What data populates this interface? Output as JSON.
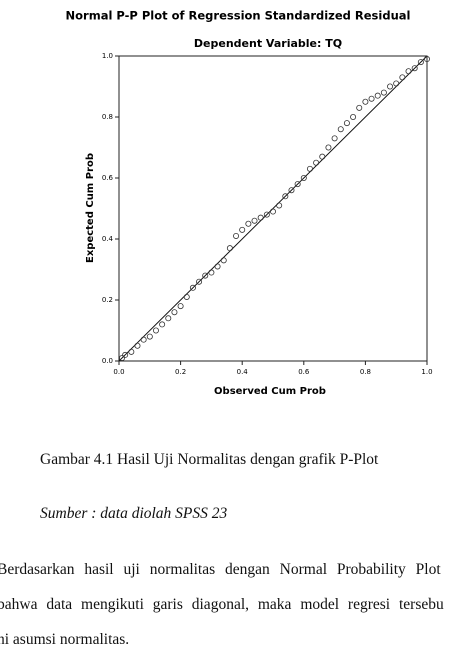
{
  "chart_data": {
    "type": "scatter",
    "title": "Normal P-P Plot of Regression Standardized Residual",
    "subtitle": "Dependent Variable: TQ",
    "x_label": "Observed Cum Prob",
    "y_label": "Expected Cum Prob",
    "xlim": [
      0,
      1
    ],
    "ylim": [
      0,
      1
    ],
    "xticks": [
      {
        "value": 0,
        "label": "0.0"
      },
      {
        "value": 0.2,
        "label": "0.2"
      },
      {
        "value": 0.4,
        "label": "0.4"
      },
      {
        "value": 0.6,
        "label": "0.6"
      },
      {
        "value": 0.8,
        "label": "0.8"
      },
      {
        "value": 1,
        "label": "1.0"
      }
    ],
    "yticks": [
      {
        "value": 0,
        "label": "0.0"
      },
      {
        "value": 0.2,
        "label": "0.2"
      },
      {
        "value": 0.4,
        "label": "0.4"
      },
      {
        "value": 0.6,
        "label": "0.6"
      },
      {
        "value": 0.8,
        "label": "0.8"
      },
      {
        "value": 1,
        "label": "1.0"
      }
    ],
    "x": [
      0.01,
      0.02,
      0.04,
      0.06,
      0.08,
      0.1,
      0.12,
      0.14,
      0.16,
      0.18,
      0.2,
      0.22,
      0.24,
      0.26,
      0.28,
      0.3,
      0.32,
      0.34,
      0.36,
      0.38,
      0.4,
      0.42,
      0.44,
      0.46,
      0.48,
      0.5,
      0.52,
      0.54,
      0.56,
      0.58,
      0.6,
      0.62,
      0.64,
      0.66,
      0.68,
      0.7,
      0.72,
      0.74,
      0.76,
      0.78,
      0.8,
      0.82,
      0.84,
      0.86,
      0.88,
      0.9,
      0.92,
      0.94,
      0.96,
      0.98,
      1.0
    ],
    "y": [
      0.01,
      0.02,
      0.03,
      0.05,
      0.07,
      0.08,
      0.1,
      0.12,
      0.14,
      0.16,
      0.18,
      0.21,
      0.24,
      0.26,
      0.28,
      0.29,
      0.31,
      0.33,
      0.37,
      0.41,
      0.43,
      0.45,
      0.46,
      0.47,
      0.48,
      0.49,
      0.51,
      0.54,
      0.56,
      0.58,
      0.6,
      0.63,
      0.65,
      0.67,
      0.7,
      0.73,
      0.76,
      0.78,
      0.8,
      0.83,
      0.85,
      0.86,
      0.87,
      0.88,
      0.9,
      0.91,
      0.93,
      0.95,
      0.96,
      0.98,
      0.99
    ],
    "marker_color": "#333333"
  },
  "caption": "Gambar 4.1 Hasil Uji Normalitas dengan grafik P-Plot",
  "source": "Sumber : data diolah SPSS 23",
  "paragraph": [
    "Berdasarkan hasil uji normalitas dengan Normal Probability Plot",
    "bahwa data mengikuti garis diagonal, maka model regresi tersebu",
    "hi asumsi normalitas."
  ]
}
